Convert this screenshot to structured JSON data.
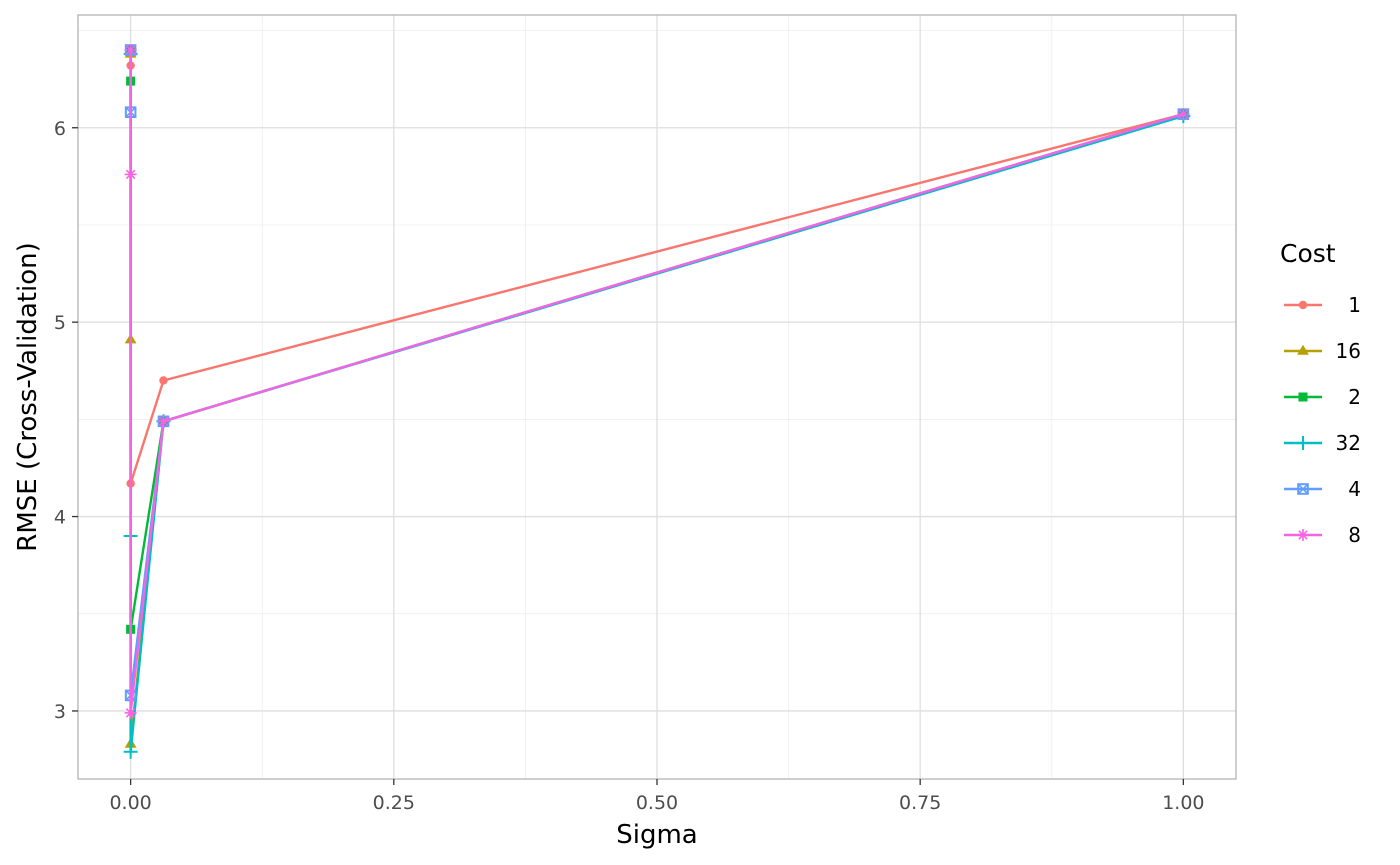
{
  "chart_data": {
    "type": "line",
    "xlabel": "Sigma",
    "ylabel": "RMSE (Cross-Validation)",
    "xlim": [
      -0.05,
      1.05
    ],
    "ylim": [
      2.65,
      6.58
    ],
    "x_ticks": [
      0.0,
      0.25,
      0.5,
      0.75,
      1.0
    ],
    "x_tick_labels": [
      "0.00",
      "0.25",
      "0.50",
      "0.75",
      "1.00"
    ],
    "y_ticks": [
      3,
      4,
      5,
      6
    ],
    "y_tick_labels": [
      "3",
      "4",
      "5",
      "6"
    ],
    "grid": true,
    "legend": {
      "title": "Cost",
      "placement": "right"
    },
    "series": [
      {
        "name": "1",
        "color": "#F8766D",
        "marker": "circle",
        "points": [
          [
            1.0,
            6.07
          ],
          [
            0.0312,
            4.7
          ],
          [
            0.0,
            4.17
          ],
          [
            0.0,
            6.32
          ],
          [
            0.0,
            6.4
          ]
        ]
      },
      {
        "name": "16",
        "color": "#B79F00",
        "marker": "triangle",
        "points": [
          [
            1.0,
            6.07
          ],
          [
            0.0312,
            4.49
          ],
          [
            0.0,
            2.83
          ],
          [
            0.0,
            4.91
          ],
          [
            0.0,
            6.38
          ]
        ]
      },
      {
        "name": "2",
        "color": "#00BA38",
        "marker": "square",
        "points": [
          [
            1.0,
            6.07
          ],
          [
            0.0312,
            4.49
          ],
          [
            0.0,
            3.42
          ],
          [
            0.0,
            6.24
          ],
          [
            0.0,
            6.4
          ]
        ]
      },
      {
        "name": "32",
        "color": "#00BFC4",
        "marker": "plus",
        "points": [
          [
            1.0,
            6.06
          ],
          [
            0.0312,
            4.49
          ],
          [
            0.0,
            2.79
          ],
          [
            0.0,
            3.9
          ],
          [
            0.0,
            6.38
          ]
        ]
      },
      {
        "name": "4",
        "color": "#619CFF",
        "marker": "square-x",
        "points": [
          [
            1.0,
            6.07
          ],
          [
            0.0312,
            4.49
          ],
          [
            0.0,
            3.08
          ],
          [
            0.0,
            6.08
          ],
          [
            0.0,
            6.4
          ]
        ]
      },
      {
        "name": "8",
        "color": "#F564E3",
        "marker": "asterisk",
        "points": [
          [
            1.0,
            6.07
          ],
          [
            0.0312,
            4.49
          ],
          [
            0.0,
            2.99
          ],
          [
            0.0,
            5.76
          ],
          [
            0.0,
            6.4
          ]
        ]
      }
    ]
  }
}
